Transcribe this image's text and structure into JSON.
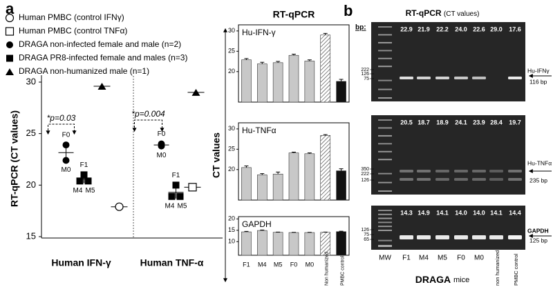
{
  "panel_labels": [
    "a",
    "b"
  ],
  "chart_data": [
    {
      "type": "scatter",
      "ylabel": "RT-qPCR (CT values)",
      "categories": [
        "Human IFN-γ",
        "Human TNF-α"
      ],
      "ylim": [
        15,
        30
      ],
      "yticks": [
        15,
        20,
        25,
        30
      ],
      "annotations": [
        "*p=0.03",
        "*p=0.004"
      ],
      "series": [
        {
          "name": "Human PMBC (control IFNγ)",
          "marker": "open-circle",
          "values": [
            [
              17.9
            ],
            null
          ]
        },
        {
          "name": "Human PMBC (control TNFα)",
          "marker": "open-square",
          "values": [
            null,
            [
              19.8
            ]
          ]
        },
        {
          "name": "DRAGA non-infected female and male (n=2)",
          "marker": "circle",
          "values": [
            [
              23.9,
              22.4
            ],
            [
              24.0,
              23.8
            ]
          ],
          "point_labels": [
            [
              "F0",
              "M0"
            ],
            [
              "F0",
              "M0"
            ]
          ],
          "means": [
            23.15,
            23.9
          ],
          "errors": [
            0.9,
            0.15
          ]
        },
        {
          "name": "DRAGA PR8-infected female and males (n=3)",
          "marker": "square",
          "values": [
            [
              21.0,
              20.4,
              20.4
            ],
            [
              20.0,
              18.9,
              18.9
            ]
          ],
          "point_labels": [
            [
              "F1",
              "M4",
              "M5"
            ],
            [
              "F1",
              "M4",
              "M5"
            ]
          ],
          "means": [
            20.6,
            19.3
          ],
          "errors": [
            0.4,
            0.6
          ]
        },
        {
          "name": "DRAGA non-humanized male (n=1)",
          "marker": "triangle",
          "values": [
            [
              29.6
            ],
            [
              29.0
            ]
          ]
        }
      ]
    },
    {
      "type": "bar",
      "title": "Hu-IFN-γ",
      "values": [
        22.9,
        21.9,
        22.2,
        24.0,
        22.6,
        29.0,
        17.6
      ],
      "errors": [
        0.3,
        0.4,
        0.3,
        0.3,
        0.3,
        0.4,
        0.5
      ],
      "colors": [
        "#c8c8c8",
        "#c8c8c8",
        "#c8c8c8",
        "#c8c8c8",
        "#c8c8c8",
        "#ffffff",
        "#111111"
      ],
      "patterns": [
        "solid",
        "solid",
        "solid",
        "solid",
        "solid",
        "hatch",
        "solid"
      ],
      "ylim": [
        12.5,
        31.5
      ],
      "yticks": [
        20,
        25,
        30
      ]
    },
    {
      "type": "bar",
      "title": "Hu-TNFα",
      "values": [
        20.5,
        18.7,
        18.9,
        24.1,
        23.9,
        28.4,
        19.7
      ],
      "errors": [
        0.4,
        0.3,
        0.5,
        0.2,
        0.2,
        0.2,
        0.5
      ],
      "colors": [
        "#c8c8c8",
        "#c8c8c8",
        "#c8c8c8",
        "#c8c8c8",
        "#c8c8c8",
        "#ffffff",
        "#111111"
      ],
      "patterns": [
        "solid",
        "solid",
        "solid",
        "solid",
        "solid",
        "hatch",
        "solid"
      ],
      "ylim": [
        12.5,
        31.5
      ],
      "yticks": [
        20,
        25,
        30
      ]
    },
    {
      "type": "bar",
      "title": "GAPDH",
      "categories": [
        "F1",
        "M4",
        "M5",
        "F0",
        "M0",
        "Non humanized",
        "PMBC control"
      ],
      "values": [
        14.3,
        14.9,
        14.1,
        14.0,
        14.0,
        14.1,
        14.4
      ],
      "errors": [
        0.2,
        0.2,
        0.1,
        0.1,
        0.1,
        0.1,
        0.2
      ],
      "colors": [
        "#c8c8c8",
        "#c8c8c8",
        "#c8c8c8",
        "#c8c8c8",
        "#c8c8c8",
        "#ffffff",
        "#111111"
      ],
      "patterns": [
        "solid",
        "solid",
        "solid",
        "solid",
        "solid",
        "hatch",
        "solid"
      ],
      "ylim": [
        4,
        21
      ],
      "yticks": [
        10,
        15,
        20
      ]
    }
  ],
  "bar_panel": {
    "title": "RT-qPCR",
    "ylabel": "CT values"
  },
  "gel": {
    "title": "RT-qPCR",
    "title_note": "(CT values)",
    "bp_label": "bp:",
    "lanes": [
      "MW",
      "F1",
      "M4",
      "M5",
      "F0",
      "M0",
      "non humanized",
      "PMBC control"
    ],
    "xlabel": "DRAGA",
    "xlabel_note": "mice",
    "panels": [
      {
        "ct_values": [
          "22.9",
          "21.9",
          "22.2",
          "24.0",
          "22.6",
          "29.0",
          "17.6"
        ],
        "ladder": [
          "222",
          "126",
          "75"
        ],
        "target": "Hu-IFNγ",
        "product": "116 bp"
      },
      {
        "ct_values": [
          "20.5",
          "18.7",
          "18.9",
          "24.1",
          "23.9",
          "28.4",
          "19.7"
        ],
        "ladder": [
          "350",
          "222",
          "126"
        ],
        "target": "Hu-TNFα",
        "product": "235 bp"
      },
      {
        "ct_values": [
          "14.3",
          "14.9",
          "14.1",
          "14.0",
          "14.0",
          "14.1",
          "14.4"
        ],
        "ladder": [
          "126",
          "75",
          "65"
        ],
        "target": "GAPDH",
        "product": "125 bp"
      }
    ]
  }
}
